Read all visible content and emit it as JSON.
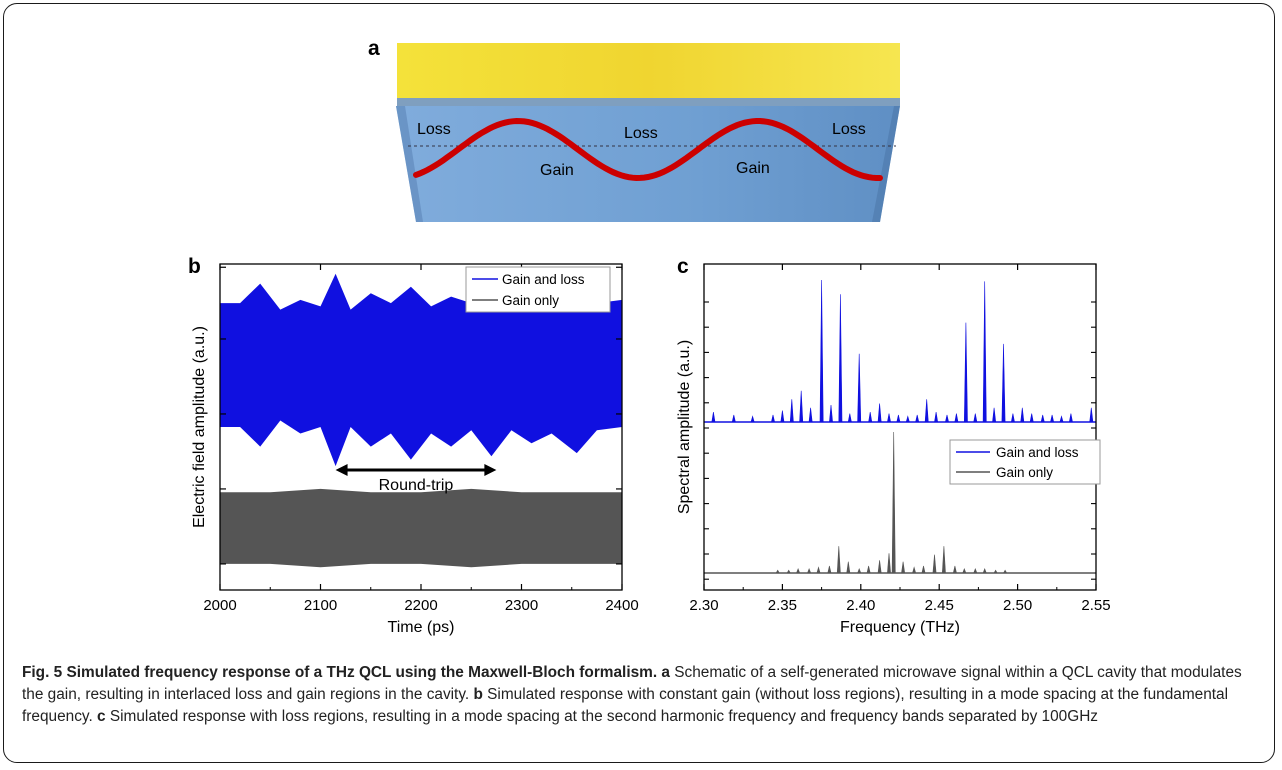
{
  "panel_a": {
    "letter": "a",
    "region_labels": [
      "Loss",
      "Loss",
      "Loss",
      "Gain",
      "Gain"
    ]
  },
  "panel_b": {
    "letter": "b",
    "legend": [
      "Gain and loss",
      "Gain only"
    ],
    "annotation": "Round-trip"
  },
  "panel_c": {
    "letter": "c",
    "legend": [
      "Gain and loss",
      "Gain only"
    ]
  },
  "colors": {
    "gain_and_loss": "#1010e0",
    "gain_only": "#555555",
    "microwave_signal": "#cc0000",
    "cavity": "#7aa6d6",
    "contact": "#f2dc2a"
  },
  "chart_data": [
    {
      "type": "line",
      "panel": "b",
      "xlabel": "Time (ps)",
      "ylabel": "Electric field amplitude (a.u.)",
      "xlim": [
        2000,
        2400
      ],
      "xticks": [
        2000,
        2100,
        2200,
        2300,
        2400
      ],
      "legend_position": "top-right",
      "series": [
        {
          "name": "Gain and loss",
          "x": [
            2000,
            2020,
            2040,
            2060,
            2080,
            2100,
            2115,
            2130,
            2150,
            2170,
            2190,
            2210,
            2230,
            2250,
            2270,
            2290,
            2310,
            2330,
            2355,
            2375,
            2400
          ],
          "y_upper": [
            0.88,
            0.88,
            0.94,
            0.86,
            0.89,
            0.87,
            0.97,
            0.86,
            0.91,
            0.88,
            0.93,
            0.87,
            0.9,
            0.88,
            0.92,
            0.86,
            0.9,
            0.88,
            0.95,
            0.88,
            0.89
          ],
          "y_lower": [
            0.5,
            0.5,
            0.44,
            0.52,
            0.48,
            0.5,
            0.38,
            0.5,
            0.44,
            0.48,
            0.4,
            0.48,
            0.44,
            0.49,
            0.41,
            0.49,
            0.45,
            0.48,
            0.42,
            0.49,
            0.5
          ]
        },
        {
          "name": "Gain only",
          "x": [
            2000,
            2050,
            2100,
            2150,
            2200,
            2250,
            2300,
            2350,
            2400
          ],
          "y_upper": [
            0.3,
            0.3,
            0.31,
            0.3,
            0.3,
            0.31,
            0.3,
            0.3,
            0.3
          ],
          "y_lower": [
            0.08,
            0.08,
            0.07,
            0.08,
            0.08,
            0.07,
            0.08,
            0.08,
            0.08
          ]
        }
      ],
      "annotation_range": [
        2115,
        2275
      ]
    },
    {
      "type": "line",
      "panel": "c",
      "xlabel": "Frequency (THz)",
      "ylabel": "Spectral amplitude (a.u.)",
      "xlim": [
        2.3,
        2.55
      ],
      "xticks": [
        "2.30",
        "2.35",
        "2.40",
        "2.45",
        "2.50",
        "2.55"
      ],
      "legend_position": "right",
      "series": [
        {
          "name": "Gain and loss",
          "peaks_x": [
            2.306,
            2.319,
            2.331,
            2.344,
            2.35,
            2.356,
            2.362,
            2.368,
            2.375,
            2.381,
            2.387,
            2.393,
            2.399,
            2.406,
            2.412,
            2.418,
            2.424,
            2.43,
            2.436,
            2.442,
            2.448,
            2.455,
            2.461,
            2.467,
            2.473,
            2.479,
            2.485,
            2.491,
            2.497,
            2.503,
            2.509,
            2.516,
            2.522,
            2.528,
            2.534,
            2.547
          ],
          "peaks_y": [
            0.07,
            0.05,
            0.04,
            0.05,
            0.08,
            0.16,
            0.22,
            0.1,
            1.0,
            0.12,
            0.9,
            0.06,
            0.48,
            0.07,
            0.13,
            0.06,
            0.05,
            0.04,
            0.05,
            0.16,
            0.07,
            0.05,
            0.06,
            0.7,
            0.06,
            0.99,
            0.1,
            0.55,
            0.06,
            0.1,
            0.06,
            0.05,
            0.05,
            0.04,
            0.06,
            0.1
          ]
        },
        {
          "name": "Gain only",
          "peaks_x": [
            2.347,
            2.354,
            2.36,
            2.367,
            2.373,
            2.38,
            2.386,
            2.392,
            2.399,
            2.405,
            2.412,
            2.418,
            2.421,
            2.427,
            2.434,
            2.44,
            2.447,
            2.453,
            2.46,
            2.466,
            2.473,
            2.479,
            2.486,
            2.492
          ],
          "peaks_y": [
            0.02,
            0.02,
            0.03,
            0.03,
            0.04,
            0.05,
            0.19,
            0.08,
            0.03,
            0.05,
            0.09,
            0.14,
            1.0,
            0.08,
            0.04,
            0.05,
            0.13,
            0.19,
            0.05,
            0.03,
            0.03,
            0.03,
            0.02,
            0.02
          ]
        }
      ]
    }
  ],
  "caption": {
    "lead": "Fig. 5 Simulated frequency response of a THz QCL using the Maxwell-Bloch formalism.",
    "parts": [
      {
        "label": "a",
        "text": "Schematic of a self-generated microwave signal within a QCL cavity that modulates the gain, resulting in interlaced loss and gain regions in the cavity."
      },
      {
        "label": "b",
        "text": "Simulated response with constant gain (without loss regions), resulting in a mode spacing at the fundamental frequency."
      },
      {
        "label": "c",
        "text": "Simulated response with loss regions, resulting in a mode spacing at the second harmonic frequency and frequency bands separated by 100GHz"
      }
    ]
  }
}
